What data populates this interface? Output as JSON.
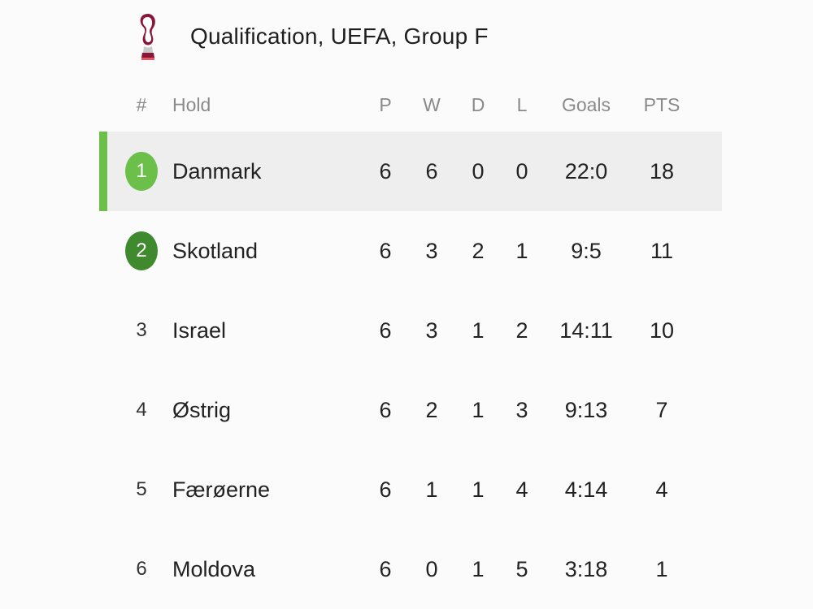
{
  "header": {
    "title": "Qualification, UEFA, Group F",
    "logo_icon": "world-cup-trophy-icon"
  },
  "table": {
    "columns": {
      "pos": "#",
      "team": "Hold",
      "p": "P",
      "w": "W",
      "d": "D",
      "l": "L",
      "goals": "Goals",
      "pts": "PTS"
    },
    "rows": [
      {
        "pos": "1",
        "team": "Danmark",
        "p": "6",
        "w": "6",
        "d": "0",
        "l": "0",
        "goals": "22:0",
        "pts": "18"
      },
      {
        "pos": "2",
        "team": "Skotland",
        "p": "6",
        "w": "3",
        "d": "2",
        "l": "1",
        "goals": "9:5",
        "pts": "11"
      },
      {
        "pos": "3",
        "team": "Israel",
        "p": "6",
        "w": "3",
        "d": "1",
        "l": "2",
        "goals": "14:11",
        "pts": "10"
      },
      {
        "pos": "4",
        "team": "Østrig",
        "p": "6",
        "w": "2",
        "d": "1",
        "l": "3",
        "goals": "9:13",
        "pts": "7"
      },
      {
        "pos": "5",
        "team": "Færøerne",
        "p": "6",
        "w": "1",
        "d": "1",
        "l": "4",
        "goals": "4:14",
        "pts": "4"
      },
      {
        "pos": "6",
        "team": "Moldova",
        "p": "6",
        "w": "0",
        "d": "1",
        "l": "5",
        "goals": "3:18",
        "pts": "1"
      }
    ]
  },
  "colors": {
    "qualified_badge": "#6cc04a",
    "playoff_badge": "#3f8a2e",
    "highlight_bar": "#6cc04a",
    "highlight_row": "#eeeeee"
  }
}
